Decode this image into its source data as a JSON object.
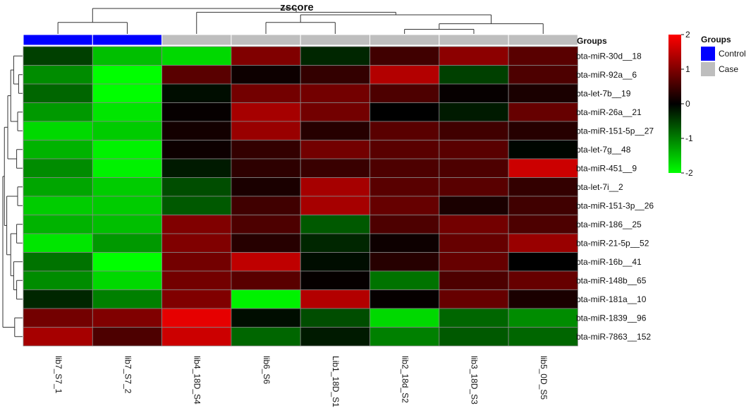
{
  "chart_data": {
    "type": "heatmap",
    "title": "zscore",
    "columns": [
      "lib7_S7_1",
      "lib7_S7_2",
      "lib4_18D_S4",
      "lib6_S6",
      "Lib1_18D_S1",
      "lib2_18d_S2",
      "lib3_18D_S3",
      "lib5_0D_S5"
    ],
    "rows": [
      "bta-miR-30d__18",
      "bta-miR-92a__6",
      "bta-let-7b__19",
      "bta-miR-26a__21",
      "bta-miR-151-5p__27",
      "bta-let-7g__48",
      "bta-miR-451__9",
      "bta-let-7i__2",
      "bta-miR-151-3p__26",
      "bta-miR-186__25",
      "bta-miR-21-5p__52",
      "bta-miR-16b__41",
      "bta-miR-148b__65",
      "bta-miR-181a__10",
      "bta-miR-1839__96",
      "bta-miR-7863__152"
    ],
    "values": [
      [
        -0.5,
        -1.5,
        -1.7,
        1.0,
        -0.3,
        0.5,
        1.1,
        0.7
      ],
      [
        -1.1,
        -2.0,
        0.7,
        0.1,
        0.4,
        1.4,
        -0.5,
        0.6
      ],
      [
        -0.8,
        -2.0,
        -0.1,
        0.9,
        0.9,
        0.6,
        0.05,
        0.2
      ],
      [
        -1.2,
        -1.8,
        0.05,
        1.3,
        0.9,
        0.0,
        -0.2,
        0.8
      ],
      [
        -1.7,
        -1.6,
        0.15,
        1.2,
        0.3,
        0.7,
        0.5,
        0.3
      ],
      [
        -1.4,
        -1.9,
        0.1,
        0.4,
        0.9,
        0.7,
        0.7,
        -0.05
      ],
      [
        -1.1,
        -1.9,
        -0.2,
        0.35,
        0.45,
        0.6,
        0.6,
        1.6
      ],
      [
        -1.3,
        -1.6,
        -0.6,
        0.2,
        1.3,
        0.7,
        0.7,
        0.4
      ],
      [
        -1.6,
        -1.6,
        -0.7,
        0.5,
        1.3,
        0.8,
        0.2,
        0.5
      ],
      [
        -1.4,
        -1.5,
        1.0,
        0.6,
        -0.7,
        0.6,
        0.9,
        0.6
      ],
      [
        -1.8,
        -1.2,
        1.0,
        0.3,
        -0.3,
        0.1,
        0.8,
        1.2
      ],
      [
        -0.9,
        -2.0,
        0.9,
        1.5,
        -0.1,
        0.3,
        0.8,
        0.0
      ],
      [
        -1.1,
        -1.7,
        0.9,
        0.7,
        0.05,
        -0.9,
        0.6,
        0.8
      ],
      [
        -0.3,
        -1.0,
        1.0,
        -1.9,
        1.4,
        0.05,
        0.8,
        0.2
      ],
      [
        0.9,
        1.0,
        1.8,
        -0.1,
        -0.6,
        -1.7,
        -0.8,
        -1.1
      ],
      [
        1.3,
        0.6,
        1.6,
        -0.8,
        -0.2,
        -1.0,
        -0.7,
        -0.8
      ]
    ],
    "col_groups": [
      "Control",
      "Control",
      "Case",
      "Case",
      "Case",
      "Case",
      "Case",
      "Case"
    ],
    "group_annotation": {
      "label": "Groups",
      "legend_title": "Groups",
      "levels": [
        {
          "name": "Control",
          "color": "#0000ff"
        },
        {
          "name": "Case",
          "color": "#bebebe"
        }
      ]
    },
    "color_scale": {
      "min": -2,
      "max": 2,
      "colors": [
        "#00ff00",
        "#000000",
        "#ff0000"
      ],
      "ticks": [
        "2",
        "1",
        "0",
        "-1",
        "-2"
      ]
    },
    "grid": true,
    "row_dendrogram": true,
    "col_dendrogram": true,
    "legend_placement": "right"
  }
}
